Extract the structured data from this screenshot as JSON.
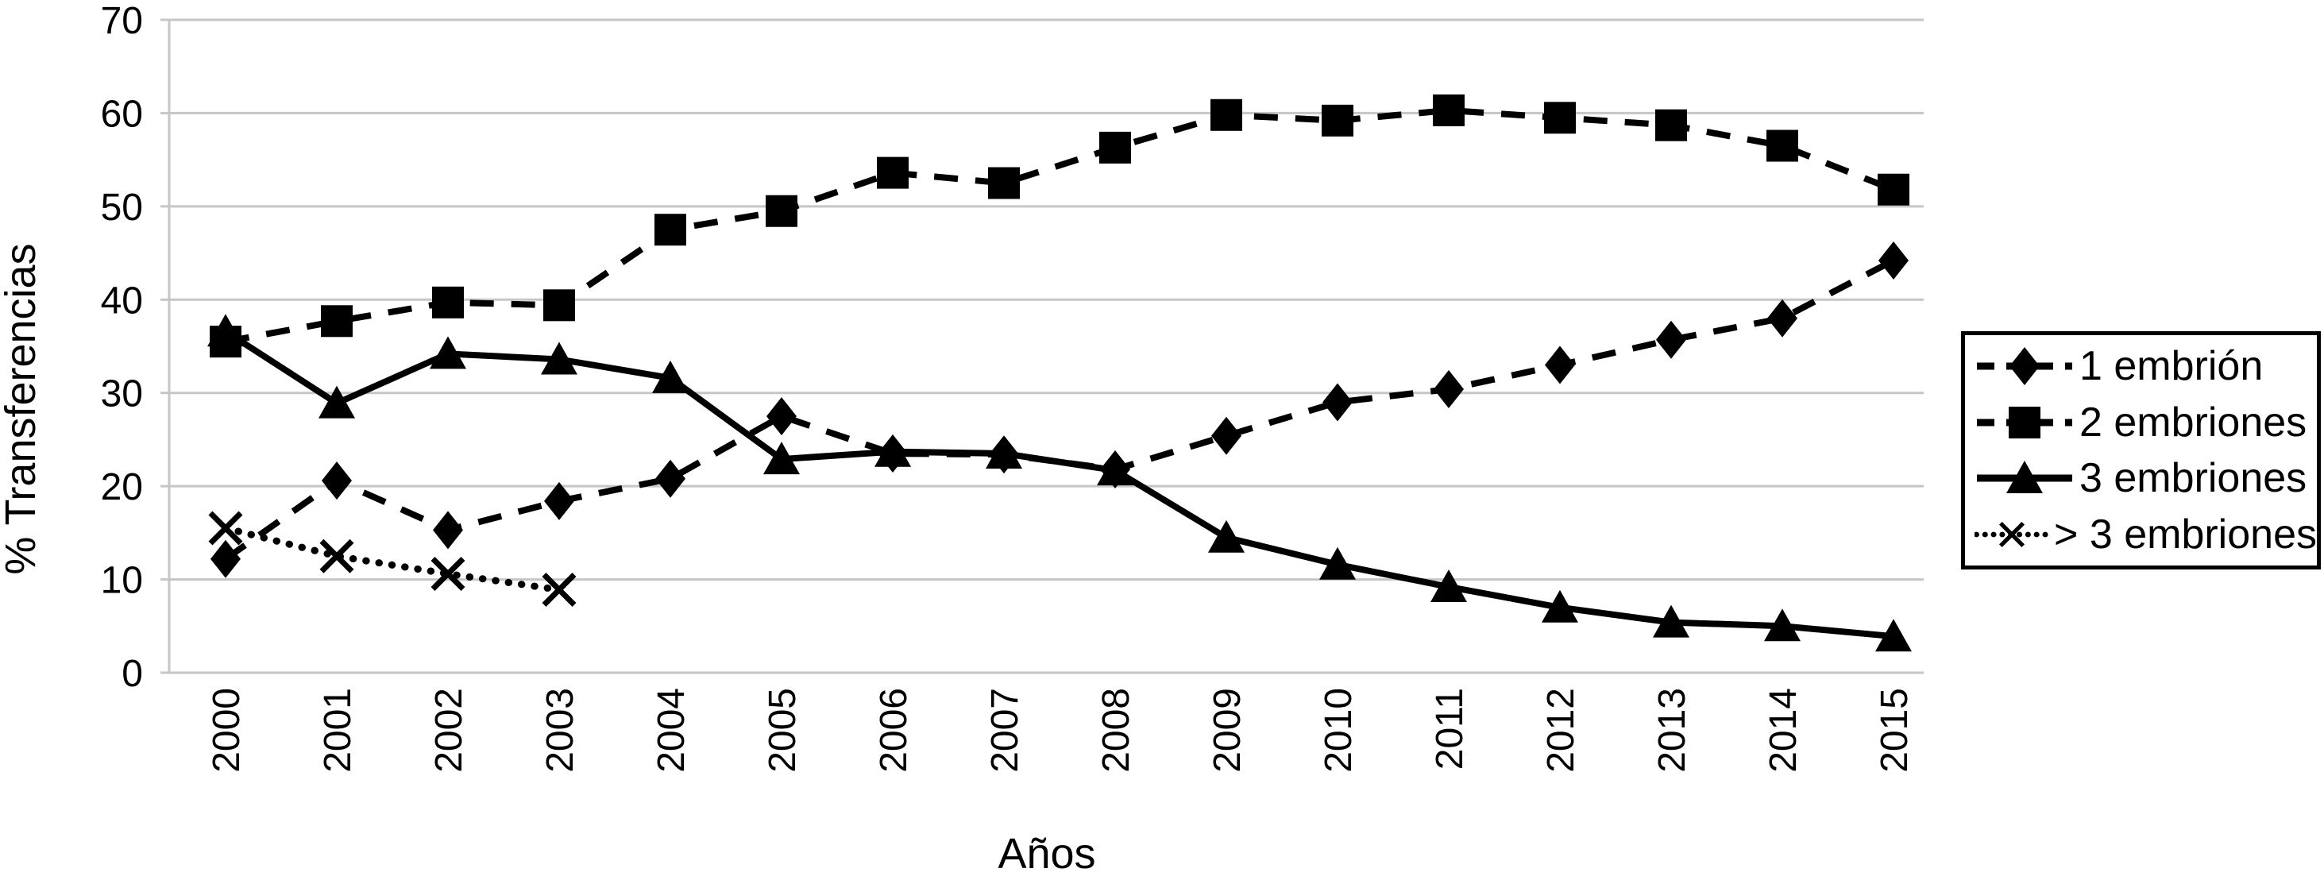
{
  "chart_data": {
    "type": "line",
    "title": "",
    "xlabel": "Años",
    "ylabel": "% Transferencias",
    "x": [
      2000,
      2001,
      2002,
      2003,
      2004,
      2005,
      2006,
      2007,
      2008,
      2009,
      2010,
      2011,
      2012,
      2013,
      2014,
      2015
    ],
    "ylim": [
      0,
      70
    ],
    "yticks": [
      0,
      10,
      20,
      30,
      40,
      50,
      60,
      70
    ],
    "grid": true,
    "grid_color": "#c6c6c6",
    "series_color": "#000000",
    "background_color": "#ffffff",
    "legend_position": "right",
    "series": [
      {
        "name": "1 embrión",
        "marker": "diamond",
        "line": "dashed",
        "color": "#000000",
        "values": [
          12.2,
          20.6,
          15.3,
          18.4,
          20.8,
          27.5,
          23.5,
          23.4,
          21.8,
          25.4,
          29.0,
          30.4,
          33.0,
          35.7,
          38.0,
          44.2
        ]
      },
      {
        "name": "2 embriones",
        "marker": "square",
        "line": "dashed",
        "color": "#000000",
        "values": [
          35.5,
          37.7,
          39.7,
          39.4,
          47.5,
          49.5,
          53.6,
          52.5,
          56.3,
          59.8,
          59.2,
          60.3,
          59.5,
          58.7,
          56.5,
          51.8
        ]
      },
      {
        "name": "3 embriones",
        "marker": "triangle",
        "line": "solid",
        "color": "#000000",
        "values": [
          36.6,
          28.9,
          34.2,
          33.6,
          31.6,
          22.9,
          23.7,
          23.5,
          21.7,
          14.5,
          11.6,
          9.2,
          7.0,
          5.4,
          5.0,
          3.9
        ]
      },
      {
        "name": "> 3 embriones",
        "marker": "x",
        "line": "dotted",
        "color": "#000000",
        "values": [
          15.5,
          12.5,
          10.6,
          8.9
        ]
      }
    ]
  }
}
